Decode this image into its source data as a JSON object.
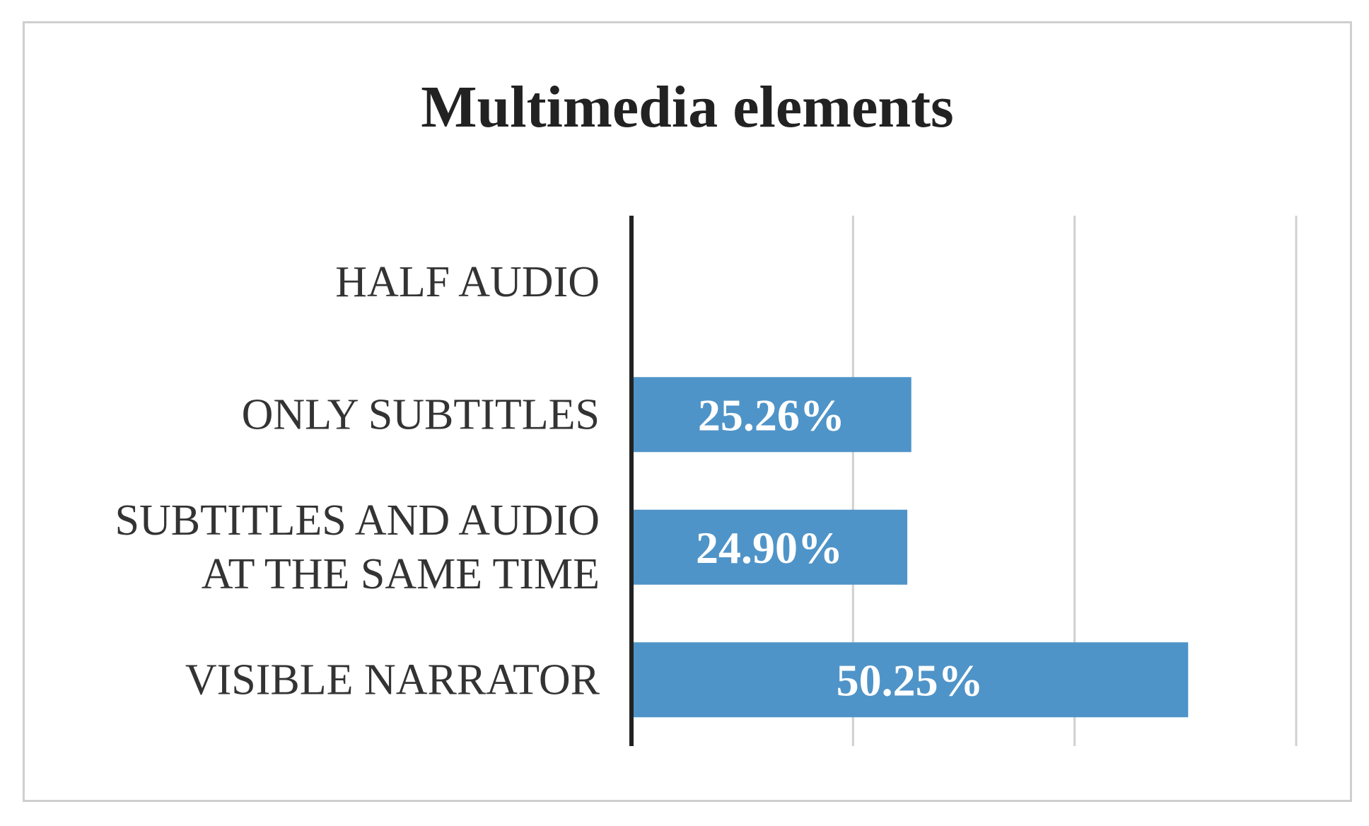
{
  "chart_data": {
    "type": "bar",
    "orientation": "horizontal",
    "title": "Multimedia elements",
    "xlabel": "",
    "ylabel": "",
    "categories": [
      "HALF AUDIO",
      "ONLY SUBTITLES",
      "SUBTITLES AND AUDIO AT THE SAME TIME",
      "VISIBLE NARRATOR"
    ],
    "category_lines": [
      [
        "HALF AUDIO"
      ],
      [
        "ONLY SUBTITLES"
      ],
      [
        "SUBTITLES AND AUDIO",
        "AT THE SAME TIME"
      ],
      [
        "VISIBLE NARRATOR"
      ]
    ],
    "values": [
      0,
      25.26,
      24.9,
      50.25
    ],
    "value_labels": [
      "",
      "25.26%",
      "24.90%",
      "50.25%"
    ],
    "xlim": [
      0,
      60
    ],
    "gridlines": [
      20,
      40,
      60
    ],
    "grid": true,
    "legend": "none",
    "colors": {
      "bar": "#4f94c8",
      "grid": "#d0d0d0",
      "axis": "#222222"
    }
  }
}
